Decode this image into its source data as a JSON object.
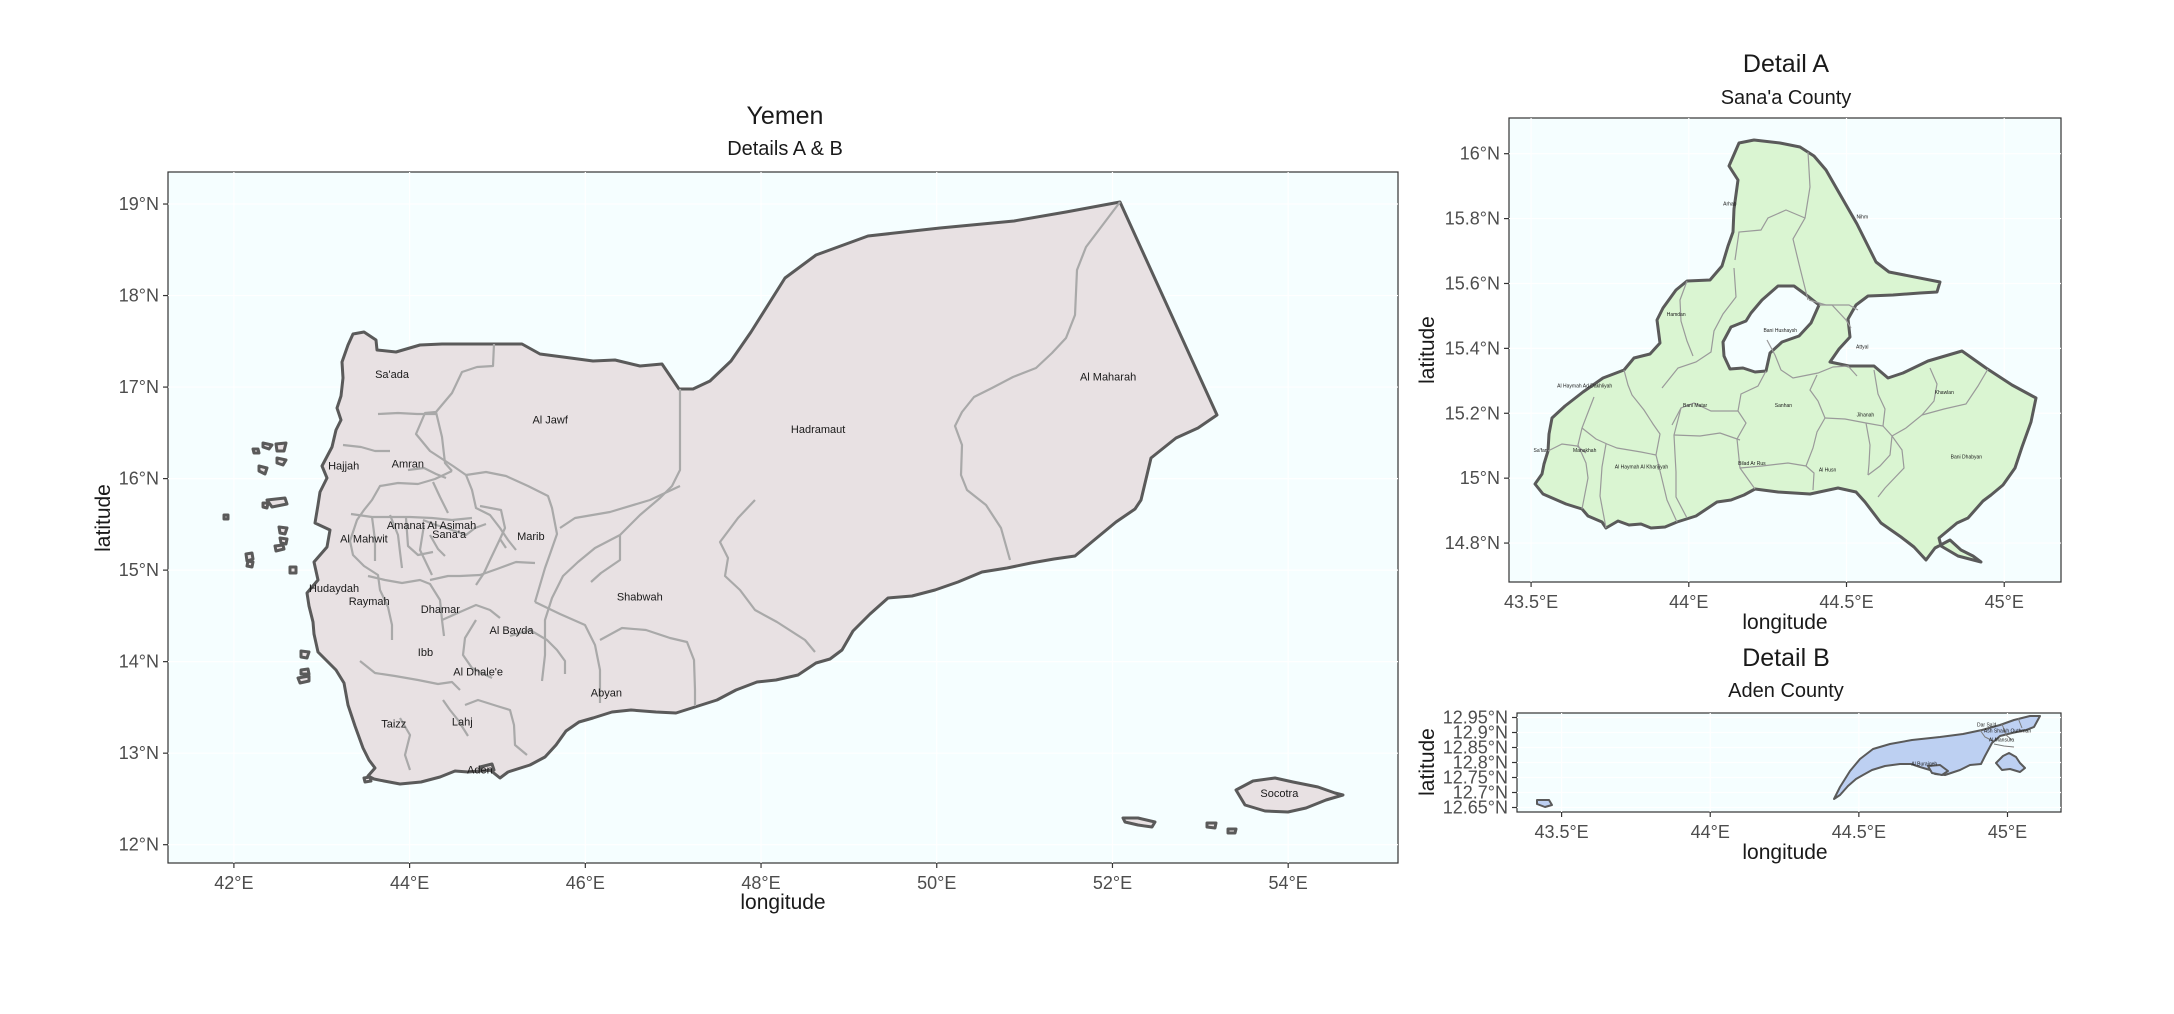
{
  "main_map": {
    "title": "Yemen",
    "subtitle": "Details A & B",
    "xlabel": "longitude",
    "ylabel": "latitude",
    "xlim": [
      41.25,
      55.25
    ],
    "ylim": [
      11.8,
      19.35
    ],
    "x_ticks": [
      {
        "value": 42,
        "label": "42°E"
      },
      {
        "value": 44,
        "label": "44°E"
      },
      {
        "value": 46,
        "label": "46°E"
      },
      {
        "value": 48,
        "label": "48°E"
      },
      {
        "value": 50,
        "label": "50°E"
      },
      {
        "value": 52,
        "label": "52°E"
      },
      {
        "value": 54,
        "label": "54°E"
      }
    ],
    "y_ticks": [
      {
        "value": 12,
        "label": "12°N"
      },
      {
        "value": 13,
        "label": "13°N"
      },
      {
        "value": 14,
        "label": "14°N"
      },
      {
        "value": 15,
        "label": "15°N"
      },
      {
        "value": 16,
        "label": "16°N"
      },
      {
        "value": 17,
        "label": "17°N"
      },
      {
        "value": 18,
        "label": "18°N"
      },
      {
        "value": 19,
        "label": "19°N"
      }
    ],
    "background": "#f5feff",
    "fill": "#e8e1e3",
    "regions": [
      {
        "name": "Sa'ada",
        "lon": 43.8,
        "lat": 17.1
      },
      {
        "name": "Al Jawf",
        "lon": 45.6,
        "lat": 16.6
      },
      {
        "name": "Hadramaut",
        "lon": 48.65,
        "lat": 16.5
      },
      {
        "name": "Al Maharah",
        "lon": 51.95,
        "lat": 17.07
      },
      {
        "name": "Hajjah",
        "lon": 43.25,
        "lat": 16.1
      },
      {
        "name": "Amran",
        "lon": 43.98,
        "lat": 16.12
      },
      {
        "name": "Al Mahwit",
        "lon": 43.48,
        "lat": 15.3
      },
      {
        "name": "Amanat Al Asimah",
        "lon": 44.25,
        "lat": 15.45
      },
      {
        "name": "Sana'a",
        "lon": 44.45,
        "lat": 15.35
      },
      {
        "name": "Marib",
        "lon": 45.38,
        "lat": 15.33
      },
      {
        "name": "Hudaydah",
        "lon": 43.14,
        "lat": 14.76
      },
      {
        "name": "Raymah",
        "lon": 43.54,
        "lat": 14.62
      },
      {
        "name": "Dhamar",
        "lon": 44.35,
        "lat": 14.53
      },
      {
        "name": "Shabwah",
        "lon": 46.62,
        "lat": 14.67
      },
      {
        "name": "Al Bayda",
        "lon": 45.16,
        "lat": 14.3
      },
      {
        "name": "Ibb",
        "lon": 44.18,
        "lat": 14.06
      },
      {
        "name": "Al Dhale'e",
        "lon": 44.78,
        "lat": 13.85
      },
      {
        "name": "Abyan",
        "lon": 46.24,
        "lat": 13.62
      },
      {
        "name": "Taizz",
        "lon": 43.82,
        "lat": 13.28
      },
      {
        "name": "Lahj",
        "lon": 44.6,
        "lat": 13.3
      },
      {
        "name": "Aden",
        "lon": 44.8,
        "lat": 12.78
      },
      {
        "name": "Socotra",
        "lon": 53.9,
        "lat": 12.52
      }
    ]
  },
  "detail_a": {
    "title": "Detail A",
    "subtitle": "Sana'a County",
    "xlabel": "longitude",
    "ylabel": "latitude",
    "xlim": [
      43.43,
      45.18
    ],
    "ylim": [
      14.68,
      16.11
    ],
    "x_ticks": [
      {
        "value": 43.5,
        "label": "43.5°E"
      },
      {
        "value": 44,
        "label": "44°E"
      },
      {
        "value": 44.5,
        "label": "44.5°E"
      },
      {
        "value": 45,
        "label": "45°E"
      }
    ],
    "y_ticks": [
      {
        "value": 14.8,
        "label": "14.8°N"
      },
      {
        "value": 15,
        "label": "15°N"
      },
      {
        "value": 15.2,
        "label": "15.2°N"
      },
      {
        "value": 15.4,
        "label": "15.4°N"
      },
      {
        "value": 15.6,
        "label": "15.6°N"
      },
      {
        "value": 15.8,
        "label": "15.8°N"
      },
      {
        "value": 16,
        "label": "16°N"
      }
    ],
    "background": "#f5feff",
    "fill": "#daf5d2",
    "districts": [
      {
        "name": "Arhab",
        "lon": 44.13,
        "lat": 15.84
      },
      {
        "name": "Nihm",
        "lon": 44.55,
        "lat": 15.8
      },
      {
        "name": "Hamdan",
        "lon": 43.96,
        "lat": 15.5
      },
      {
        "name": "Bani Hushaysh",
        "lon": 44.29,
        "lat": 15.45
      },
      {
        "name": "Attyal",
        "lon": 44.55,
        "lat": 15.4
      },
      {
        "name": "Al Haymah Ad Dakhliyah",
        "lon": 43.67,
        "lat": 15.28
      },
      {
        "name": "Bani Matar",
        "lon": 44.02,
        "lat": 15.22
      },
      {
        "name": "Sanhan",
        "lon": 44.3,
        "lat": 15.22
      },
      {
        "name": "Jihanah",
        "lon": 44.56,
        "lat": 15.19
      },
      {
        "name": "Khawlan",
        "lon": 44.81,
        "lat": 15.26
      },
      {
        "name": "Sa'fan",
        "lon": 43.53,
        "lat": 15.08
      },
      {
        "name": "Manakhah",
        "lon": 43.67,
        "lat": 15.08
      },
      {
        "name": "Al Haymah Al Kharijiyah",
        "lon": 43.85,
        "lat": 15.03
      },
      {
        "name": "Bilad Ar Rus",
        "lon": 44.2,
        "lat": 15.04
      },
      {
        "name": "Al Husn",
        "lon": 44.44,
        "lat": 15.02
      },
      {
        "name": "Bani Dhabyan",
        "lon": 44.88,
        "lat": 15.06
      }
    ]
  },
  "detail_b": {
    "title": "Detail B",
    "subtitle": "Aden County",
    "xlabel": "longitude",
    "ylabel": "latitude",
    "xlim": [
      43.35,
      45.18
    ],
    "ylim": [
      12.635,
      12.965
    ],
    "x_ticks": [
      {
        "value": 43.5,
        "label": "43.5°E"
      },
      {
        "value": 44,
        "label": "44°E"
      },
      {
        "value": 44.5,
        "label": "44.5°E"
      },
      {
        "value": 45,
        "label": "45°E"
      }
    ],
    "y_ticks": [
      {
        "value": 12.65,
        "label": "12.65°N"
      },
      {
        "value": 12.7,
        "label": "12.7°N"
      },
      {
        "value": 12.75,
        "label": "12.75°N"
      },
      {
        "value": 12.8,
        "label": "12.8°N"
      },
      {
        "value": 12.85,
        "label": "12.85°N"
      },
      {
        "value": 12.9,
        "label": "12.9°N"
      },
      {
        "value": 12.95,
        "label": "12.95°N"
      }
    ],
    "background": "#f5feff",
    "fill": "#bdd0f2",
    "districts": [
      {
        "name": "Dar Sa'd",
        "lon": 44.93,
        "lat": 12.92
      },
      {
        "name": "Ash Shaikh Outhman",
        "lon": 45.0,
        "lat": 12.9
      },
      {
        "name": "Al Buraiqeh",
        "lon": 44.72,
        "lat": 12.79
      },
      {
        "name": "Al Mansura",
        "lon": 44.98,
        "lat": 12.87
      }
    ]
  }
}
